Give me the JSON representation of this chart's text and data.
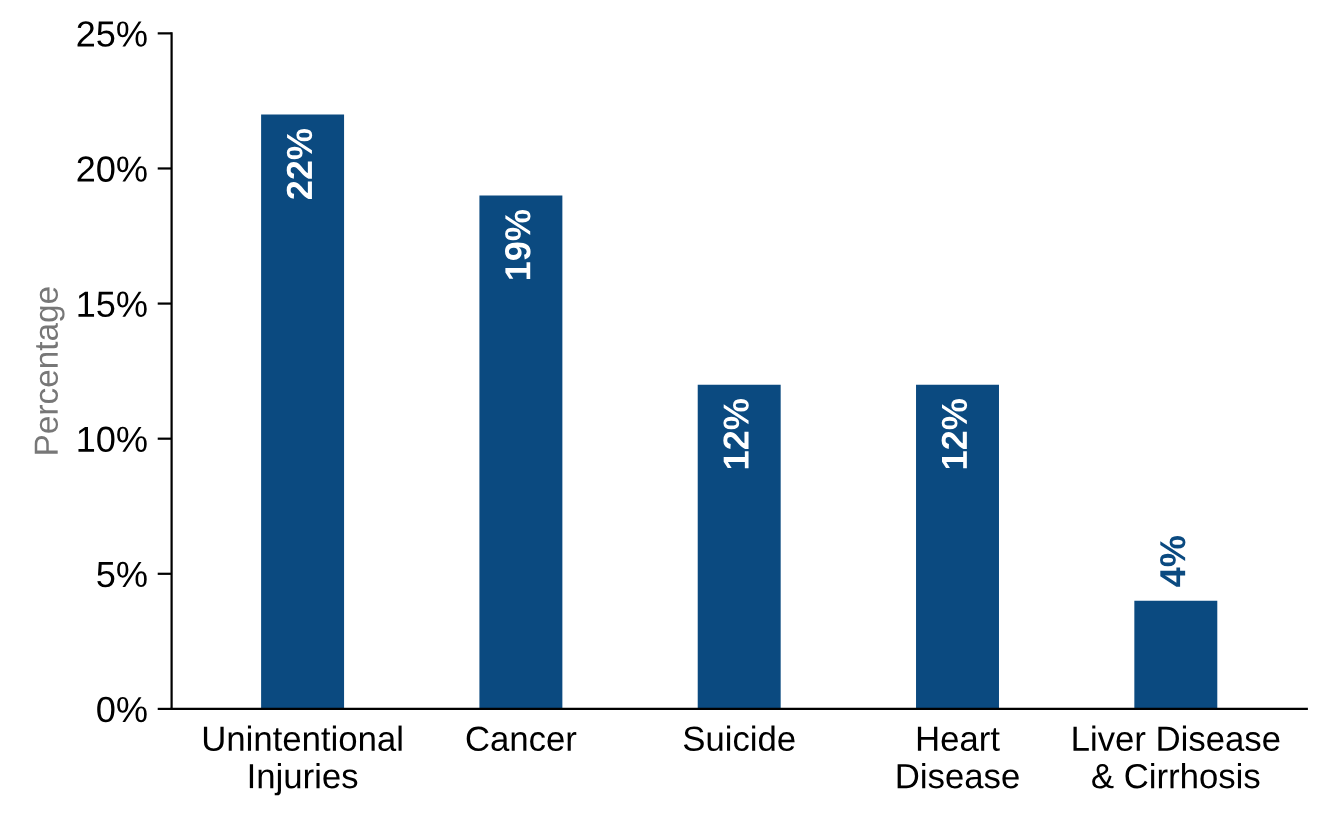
{
  "chart_data": {
    "type": "bar",
    "ylabel": "Percentage",
    "categories": [
      "Unintentional\nInjuries",
      "Cancer",
      "Suicide",
      "Heart\nDisease",
      "Liver Disease\n& Cirrhosis"
    ],
    "values": [
      22,
      19,
      12,
      12,
      4
    ],
    "color": "#0b4a80",
    "value_labels": [
      "22%",
      "19%",
      "12%",
      "12%",
      "4%"
    ],
    "ylim": [
      0,
      25
    ],
    "yticks": [
      {
        "value": 0,
        "label": "0%"
      },
      {
        "value": 5,
        "label": "5%"
      },
      {
        "value": 10,
        "label": "10%"
      },
      {
        "value": 15,
        "label": "15%"
      },
      {
        "value": 20,
        "label": "20%"
      },
      {
        "value": 25,
        "label": "25%"
      }
    ],
    "grid": false,
    "legend": false
  }
}
